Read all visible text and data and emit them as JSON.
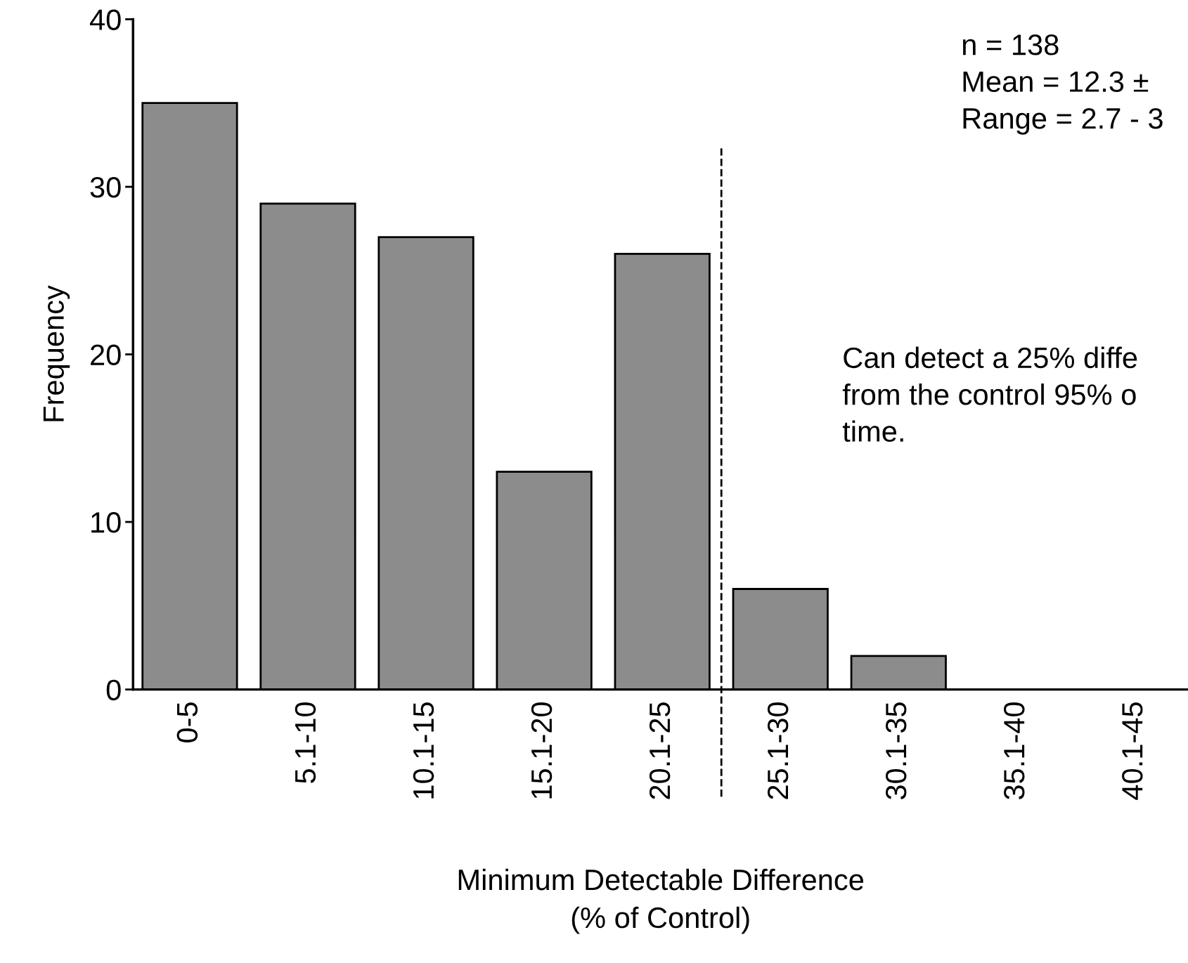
{
  "chart_data": {
    "type": "bar",
    "xlabel": "Minimum Detectable Difference\n(% of Control)",
    "ylabel": "Frequency",
    "categories": [
      "0-5",
      "5.1-10",
      "10.1-15",
      "15.1-20",
      "20.1-25",
      "25.1-30",
      "30.1-35",
      "35.1-40",
      "40.1-45"
    ],
    "values": [
      35,
      29,
      27,
      13,
      26,
      6,
      2,
      0,
      0
    ],
    "color": "#8c8c8c",
    "ylim": [
      0,
      40
    ],
    "yticks": [
      0,
      10,
      20,
      30,
      40
    ],
    "grid": false,
    "legend": false,
    "annotations": [
      "n = 138\nMean = 12.3 ±\nRange = 2.7 - 3",
      "Can detect a 25% diffe\nfrom the control 95% o\ntime."
    ]
  }
}
